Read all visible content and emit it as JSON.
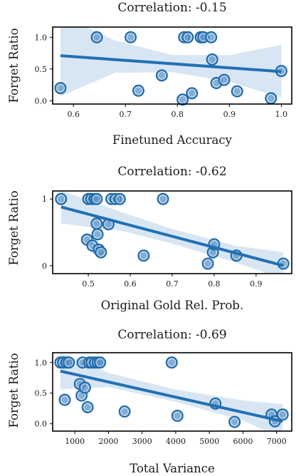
{
  "chart_data": [
    {
      "type": "scatter",
      "title": "Correlation: -0.15",
      "xlabel": "Finetuned Accuracy",
      "ylabel": "Forget Ratio",
      "xlim": [
        0.56,
        1.02
      ],
      "ylim": [
        -0.05,
        1.16
      ],
      "xticks": [
        0.6,
        0.7,
        0.8,
        0.9,
        1.0
      ],
      "xtick_labels": [
        "0.6",
        "0.7",
        "0.8",
        "0.9",
        "1.0"
      ],
      "yticks": [
        0.0,
        0.5,
        1.0
      ],
      "ytick_labels": [
        "0.0",
        "0.5",
        "1.0"
      ],
      "x": [
        0.575,
        0.645,
        0.71,
        0.725,
        0.77,
        0.81,
        0.813,
        0.82,
        0.828,
        0.845,
        0.845,
        0.85,
        0.865,
        0.867,
        0.875,
        0.89,
        0.915,
        0.98,
        1.0
      ],
      "y": [
        0.2,
        1.0,
        1.0,
        0.16,
        0.4,
        0.02,
        1.0,
        1.0,
        0.12,
        1.0,
        1.0,
        1.0,
        1.0,
        0.65,
        0.28,
        0.33,
        0.15,
        0.04,
        0.47
      ],
      "regression": {
        "x": [
          0.575,
          1.0
        ],
        "y": [
          0.71,
          0.46
        ]
      },
      "band": {
        "x": [
          0.575,
          0.68,
          0.79,
          0.9,
          1.0
        ],
        "upper": [
          1.35,
          0.95,
          0.72,
          0.72,
          0.88
        ],
        "lower": [
          0.07,
          0.44,
          0.45,
          0.3,
          0.05
        ]
      }
    },
    {
      "type": "scatter",
      "title": "Correlation: -0.62",
      "xlabel": "Original Gold Rel. Prob.",
      "ylabel": "Forget Ratio",
      "xlim": [
        0.415,
        0.985
      ],
      "ylim": [
        -0.12,
        1.12
      ],
      "xticks": [
        0.5,
        0.6,
        0.7,
        0.8,
        0.9
      ],
      "xtick_labels": [
        "0.5",
        "0.6",
        "0.7",
        "0.8",
        "0.9"
      ],
      "yticks": [
        0.0,
        1.0
      ],
      "ytick_labels": [
        "0",
        "1"
      ],
      "x": [
        0.435,
        0.497,
        0.5,
        0.507,
        0.51,
        0.515,
        0.52,
        0.52,
        0.522,
        0.525,
        0.53,
        0.548,
        0.555,
        0.565,
        0.575,
        0.632,
        0.678,
        0.785,
        0.797,
        0.8,
        0.853,
        0.965
      ],
      "y": [
        1.0,
        0.39,
        1.0,
        1.0,
        0.3,
        1.0,
        1.0,
        0.63,
        0.47,
        0.24,
        0.2,
        0.62,
        1.0,
        1.0,
        1.0,
        0.15,
        1.0,
        0.03,
        0.2,
        0.32,
        0.15,
        0.03
      ],
      "regression": {
        "x": [
          0.435,
          0.965
        ],
        "y": [
          0.88,
          0.0
        ]
      },
      "band": {
        "x": [
          0.435,
          0.58,
          0.7,
          0.85,
          0.965
        ],
        "upper": [
          1.13,
          0.8,
          0.55,
          0.3,
          0.2
        ],
        "lower": [
          0.63,
          0.52,
          0.33,
          0.05,
          -0.2
        ]
      }
    },
    {
      "type": "scatter",
      "title": "Correlation: -0.69",
      "xlabel": "Total Variance",
      "ylabel": "Forget Ratio",
      "xlim": [
        340,
        7450
      ],
      "ylim": [
        -0.12,
        1.16
      ],
      "xticks": [
        1000,
        2000,
        3000,
        4000,
        5000,
        6000,
        7000
      ],
      "xtick_labels": [
        "1000",
        "2000",
        "3000",
        "4000",
        "5000",
        "6000",
        "7000"
      ],
      "yticks": [
        0.0,
        0.5,
        1.0
      ],
      "ytick_labels": [
        "0.0",
        "0.5",
        "1.0"
      ],
      "x": [
        570,
        650,
        700,
        750,
        820,
        1150,
        1200,
        1230,
        1300,
        1380,
        1430,
        1500,
        1600,
        1680,
        1750,
        2480,
        3880,
        4050,
        5180,
        5750,
        6850,
        6950,
        7180
      ],
      "y": [
        1.0,
        1.0,
        0.39,
        1.0,
        1.0,
        0.65,
        0.46,
        1.0,
        0.59,
        0.27,
        1.0,
        1.0,
        1.0,
        1.0,
        1.0,
        0.2,
        1.0,
        0.13,
        0.33,
        0.03,
        0.15,
        0.04,
        0.15
      ],
      "regression": {
        "x": [
          570,
          7180
        ],
        "y": [
          0.86,
          0.04
        ]
      },
      "band": {
        "x": [
          570,
          2000,
          4000,
          6000,
          7180
        ],
        "upper": [
          1.16,
          0.83,
          0.56,
          0.38,
          0.32
        ],
        "lower": [
          0.56,
          0.6,
          0.36,
          0.05,
          -0.24
        ]
      }
    }
  ]
}
